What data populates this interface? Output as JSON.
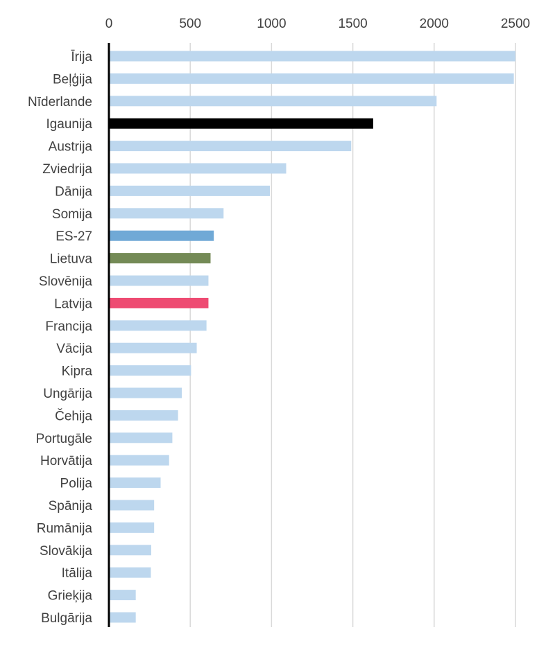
{
  "chart_data": {
    "type": "bar",
    "orientation": "horizontal",
    "title": "",
    "xlabel": "",
    "ylabel": "",
    "xlim": [
      0,
      2500
    ],
    "x_ticks": [
      0,
      500,
      1000,
      1500,
      2000,
      2500
    ],
    "x_tick_labels": [
      "0",
      "500",
      "1000",
      "1500",
      "2000",
      "2500"
    ],
    "x_axis_position": "top",
    "grid": "vertical",
    "legend": "none",
    "categories": [
      "Īrija",
      "Beļģija",
      "Nīderlande",
      "Igaunija",
      "Austrija",
      "Zviedrija",
      "Dānija",
      "Somija",
      "ES-27",
      "Lietuva",
      "Slovēnija",
      "Latvija",
      "Francija",
      "Vācija",
      "Kipra",
      "Ungārija",
      "Čehija",
      "Portugāle",
      "Horvātija",
      "Polija",
      "Spānija",
      "Rumānija",
      "Slovākija",
      "Itālija",
      "Grieķija",
      "Bulgārija"
    ],
    "values": [
      2500,
      2490,
      2015,
      1625,
      1490,
      1090,
      990,
      705,
      645,
      625,
      612,
      612,
      600,
      540,
      505,
      448,
      425,
      390,
      370,
      318,
      278,
      278,
      260,
      258,
      165,
      165
    ],
    "bar_colors": [
      "#bdd7ee",
      "#bdd7ee",
      "#bdd7ee",
      "#000000",
      "#bdd7ee",
      "#bdd7ee",
      "#bdd7ee",
      "#bdd7ee",
      "#70a9d6",
      "#748a56",
      "#bdd7ee",
      "#ee4b72",
      "#bdd7ee",
      "#bdd7ee",
      "#bdd7ee",
      "#bdd7ee",
      "#bdd7ee",
      "#bdd7ee",
      "#bdd7ee",
      "#bdd7ee",
      "#bdd7ee",
      "#bdd7ee",
      "#bdd7ee",
      "#bdd7ee",
      "#bdd7ee",
      "#bdd7ee"
    ]
  }
}
